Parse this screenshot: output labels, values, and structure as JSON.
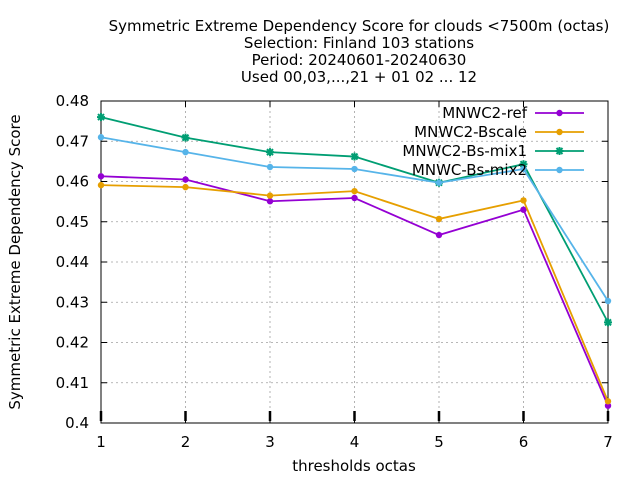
{
  "chart_data": {
    "type": "line",
    "title_lines": [
      "Symmetric Extreme Dependency Score  for clouds <7500m (octas)",
      "Selection: Finland    103 stations",
      "Period: 20240601-20240630",
      "Used 00,03,...,21 + 01 02 ... 12"
    ],
    "xlabel": "thresholds octas",
    "ylabel": "Symmetric Extreme Dependency Score",
    "x": [
      1,
      2,
      3,
      4,
      5,
      6,
      7
    ],
    "xlim": [
      1,
      7
    ],
    "ylim": [
      0.4,
      0.48
    ],
    "xticks": [
      "1",
      "2",
      "3",
      "4",
      "5",
      "6",
      "7"
    ],
    "yticks": [
      "0.4",
      "0.41",
      "0.42",
      "0.43",
      "0.44",
      "0.45",
      "0.46",
      "0.47",
      "0.48"
    ],
    "grid": true,
    "legend_position": "top-right",
    "series": [
      {
        "name": "MNWC2-ref",
        "color": "#9400d3",
        "marker": "circle",
        "values": [
          0.4613,
          0.4605,
          0.4551,
          0.4559,
          0.4467,
          0.453,
          0.4043
        ]
      },
      {
        "name": "MNWC2-Bscale",
        "color": "#e69f00",
        "marker": "circle",
        "values": [
          0.4591,
          0.4586,
          0.4565,
          0.4576,
          0.4507,
          0.4553,
          0.4054
        ]
      },
      {
        "name": "MNWC2-Bs-mix1",
        "color": "#009e73",
        "marker": "star",
        "values": [
          0.476,
          0.4709,
          0.4673,
          0.4662,
          0.4597,
          0.4643,
          0.425
        ]
      },
      {
        "name": "MNWC-Bs-mix2",
        "color": "#56b4e9",
        "marker": "circle",
        "values": [
          0.471,
          0.4673,
          0.4636,
          0.4631,
          0.4597,
          0.4631,
          0.4303
        ]
      }
    ]
  }
}
